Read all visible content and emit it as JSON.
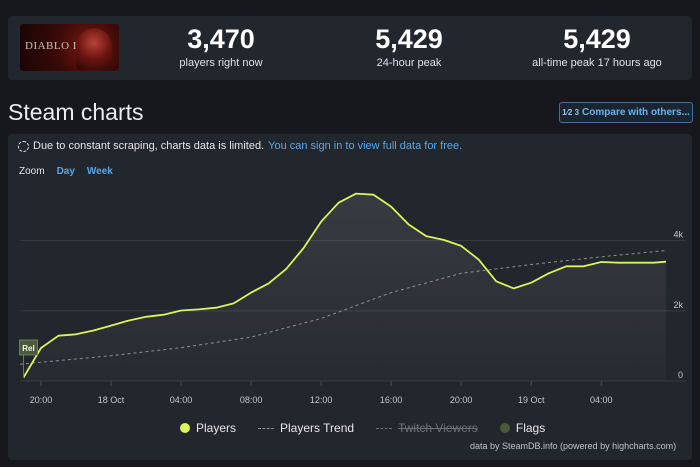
{
  "game": {
    "logo_text": "DIABLO IV"
  },
  "stats": [
    {
      "value": "3,470",
      "label": "players right now"
    },
    {
      "value": "5,429",
      "label": "24-hour peak"
    },
    {
      "value": "5,429",
      "label": "all-time peak 17 hours ago"
    }
  ],
  "section_title": "Steam charts",
  "compare_button": {
    "icon_text": "1⁄2 3",
    "label": "Compare with others..."
  },
  "notice": {
    "text": "Due to constant scraping, charts data is limited.",
    "link": "You can sign in to view full data for free."
  },
  "zoom": {
    "label": "Zoom",
    "buttons": [
      "Day",
      "Week"
    ]
  },
  "legend": {
    "players": "Players",
    "trend": "Players Trend",
    "twitch": "Twitch Viewers",
    "flags": "Flags"
  },
  "credit": "data by SteamDB.info (powered by highcharts.com)",
  "colors": {
    "players": "#d9f55a",
    "flags": "#4b5a3c",
    "accent": "#5aa6e8",
    "background": "#16181d",
    "panel": "#22262d"
  },
  "chart_data": {
    "type": "line",
    "x_ticks": [
      "20:00",
      "18 Oct",
      "04:00",
      "08:00",
      "12:00",
      "16:00",
      "20:00",
      "19 Oct",
      "04:00"
    ],
    "x_tick_hours": [
      20,
      24,
      28,
      32,
      36,
      40,
      44,
      48,
      52
    ],
    "y_ticks": [
      "0",
      "2k",
      "4k"
    ],
    "y_tick_values": [
      0,
      2000,
      4000
    ],
    "xlim": [
      18.8,
      55.7
    ],
    "ylim": [
      0,
      5500
    ],
    "flag": {
      "label": "Rel",
      "x": 19.0
    },
    "series": [
      {
        "name": "Players",
        "x": [
          19.0,
          20.0,
          21.0,
          22.0,
          23.0,
          24.0,
          25.0,
          26.0,
          27.0,
          28.0,
          29.0,
          30.0,
          31.0,
          32.0,
          33.0,
          34.0,
          35.0,
          36.0,
          37.0,
          38.0,
          39.0,
          40.0,
          41.0,
          42.0,
          43.0,
          44.0,
          45.0,
          46.0,
          47.0,
          48.0,
          49.0,
          50.0,
          51.0,
          52.0,
          53.0,
          54.0,
          55.0,
          55.7
        ],
        "values": [
          100,
          940,
          1290,
          1330,
          1440,
          1580,
          1720,
          1830,
          1890,
          2010,
          2040,
          2090,
          2210,
          2520,
          2780,
          3190,
          3790,
          4540,
          5080,
          5340,
          5310,
          4970,
          4460,
          4130,
          4020,
          3850,
          3460,
          2840,
          2640,
          2800,
          3070,
          3270,
          3270,
          3390,
          3370,
          3370,
          3370,
          3400
        ]
      },
      {
        "name": "Players Trend",
        "x": [
          18.8,
          24.0,
          28.0,
          32.0,
          36.0,
          40.0,
          44.0,
          48.0,
          52.0,
          55.7
        ],
        "values": [
          480,
          720,
          950,
          1250,
          1780,
          2520,
          3070,
          3320,
          3540,
          3720
        ]
      }
    ]
  }
}
